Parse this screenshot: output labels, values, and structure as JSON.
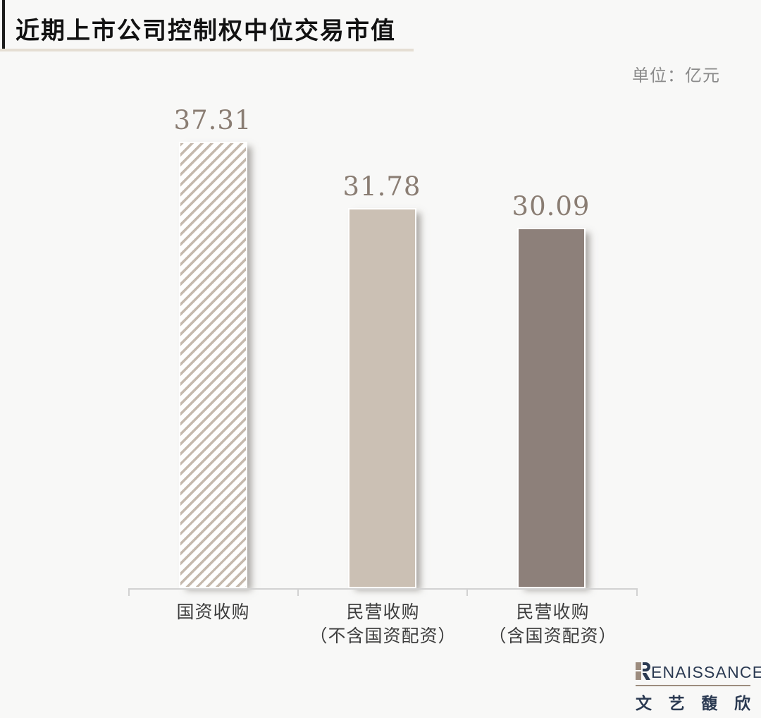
{
  "header": {
    "title": "近期上市公司控制权中位交易市值",
    "unit_label": "单位：亿元"
  },
  "chart_data": {
    "type": "bar",
    "title": "近期上市公司控制权中位交易市值",
    "unit": "亿元",
    "categories": [
      "国资收购",
      "民营收购（不含国资配资）",
      "民营收购（含国资配资）"
    ],
    "values": [
      37.31,
      31.78,
      30.09
    ],
    "value_labels": [
      "37.31",
      "31.78",
      "30.09"
    ],
    "ylim": [
      0,
      40
    ],
    "grid": false,
    "legend_position": "none",
    "bar_styles": [
      "hatched",
      "solid-light",
      "solid-dark"
    ],
    "colors": {
      "hatch_stripe": "#c5b9ad",
      "solid_light": "#cbc0b4",
      "solid_dark": "#8d807a",
      "value_label": "#8a7d73",
      "axis": "#d2d2d2",
      "title_underline": "#e5ded3"
    }
  },
  "category_lines": [
    {
      "line1": "国资收购",
      "line2": ""
    },
    {
      "line1": "民营收购",
      "line2": "（不含国资配资）"
    },
    {
      "line1": "民营收购",
      "line2": "（含国资配资）"
    }
  ],
  "footer_logo": {
    "wordmark": "RENAISSANCE",
    "wordmark_rest": "ENAISSANCE",
    "cjk_name": "文艺馥欣",
    "cjk_chars": [
      "文",
      "艺",
      "馥",
      "欣"
    ],
    "navy": "#2b3a52",
    "brown": "#9c8c7e"
  }
}
